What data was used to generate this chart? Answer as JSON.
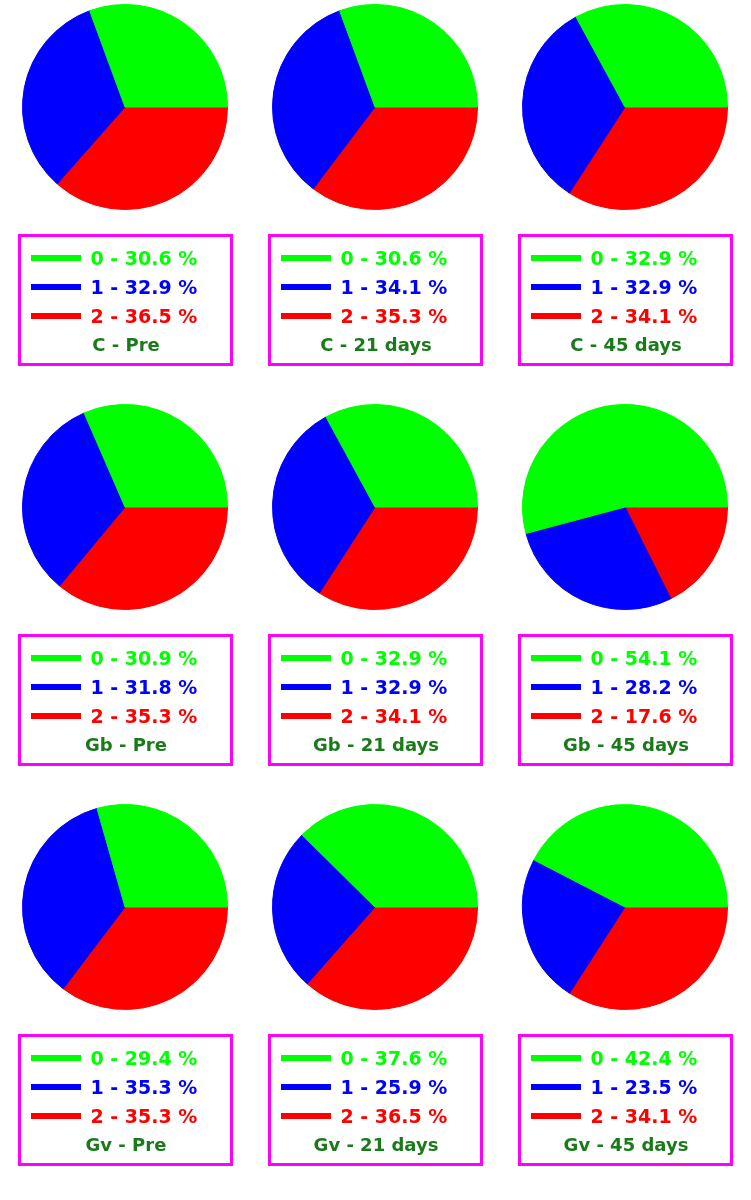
{
  "chart_data": [
    {
      "type": "pie",
      "title": "C - Pre",
      "categories": [
        "0",
        "1",
        "2"
      ],
      "values": [
        30.6,
        32.9,
        36.5
      ],
      "value_labels": [
        "30.6 %",
        "32.9 %",
        "36.5 %"
      ],
      "colors": [
        "#00ff00",
        "#0000ff",
        "#ff0000"
      ],
      "legend": "bottom"
    },
    {
      "type": "pie",
      "title": "C - 21 days",
      "categories": [
        "0",
        "1",
        "2"
      ],
      "values": [
        30.6,
        34.1,
        35.3
      ],
      "value_labels": [
        "30.6 %",
        "34.1 %",
        "35.3 %"
      ],
      "colors": [
        "#00ff00",
        "#0000ff",
        "#ff0000"
      ],
      "legend": "bottom"
    },
    {
      "type": "pie",
      "title": "C - 45 days",
      "categories": [
        "0",
        "1",
        "2"
      ],
      "values": [
        32.9,
        32.9,
        34.1
      ],
      "value_labels": [
        "32.9 %",
        "32.9 %",
        "34.1 %"
      ],
      "colors": [
        "#00ff00",
        "#0000ff",
        "#ff0000"
      ],
      "legend": "bottom"
    },
    {
      "type": "pie",
      "title": "Gb - Pre",
      "categories": [
        "0",
        "1",
        "2"
      ],
      "values": [
        30.9,
        31.8,
        35.3
      ],
      "value_labels": [
        "30.9 %",
        "31.8 %",
        "35.3 %"
      ],
      "colors": [
        "#00ff00",
        "#0000ff",
        "#ff0000"
      ],
      "legend": "bottom"
    },
    {
      "type": "pie",
      "title": "Gb - 21 days",
      "categories": [
        "0",
        "1",
        "2"
      ],
      "values": [
        32.9,
        32.9,
        34.1
      ],
      "value_labels": [
        "32.9 %",
        "32.9 %",
        "34.1 %"
      ],
      "colors": [
        "#00ff00",
        "#0000ff",
        "#ff0000"
      ],
      "legend": "bottom"
    },
    {
      "type": "pie",
      "title": "Gb - 45 days",
      "categories": [
        "0",
        "1",
        "2"
      ],
      "values": [
        54.1,
        28.2,
        17.6
      ],
      "value_labels": [
        "54.1 %",
        "28.2 %",
        "17.6 %"
      ],
      "colors": [
        "#00ff00",
        "#0000ff",
        "#ff0000"
      ],
      "legend": "bottom"
    },
    {
      "type": "pie",
      "title": "Gv - Pre",
      "categories": [
        "0",
        "1",
        "2"
      ],
      "values": [
        29.4,
        35.3,
        35.3
      ],
      "value_labels": [
        "29.4 %",
        "35.3 %",
        "35.3 %"
      ],
      "colors": [
        "#00ff00",
        "#0000ff",
        "#ff0000"
      ],
      "legend": "bottom"
    },
    {
      "type": "pie",
      "title": "Gv - 21 days",
      "categories": [
        "0",
        "1",
        "2"
      ],
      "values": [
        37.6,
        25.9,
        36.5
      ],
      "value_labels": [
        "37.6 %",
        "25.9 %",
        "36.5 %"
      ],
      "colors": [
        "#00ff00",
        "#0000ff",
        "#ff0000"
      ],
      "legend": "bottom"
    },
    {
      "type": "pie",
      "title": "Gv - 45 days",
      "categories": [
        "0",
        "1",
        "2"
      ],
      "values": [
        42.4,
        23.5,
        34.1
      ],
      "value_labels": [
        "42.4 %",
        "23.5 %",
        "34.1 %"
      ],
      "colors": [
        "#00ff00",
        "#0000ff",
        "#ff0000"
      ],
      "legend": "bottom"
    }
  ]
}
